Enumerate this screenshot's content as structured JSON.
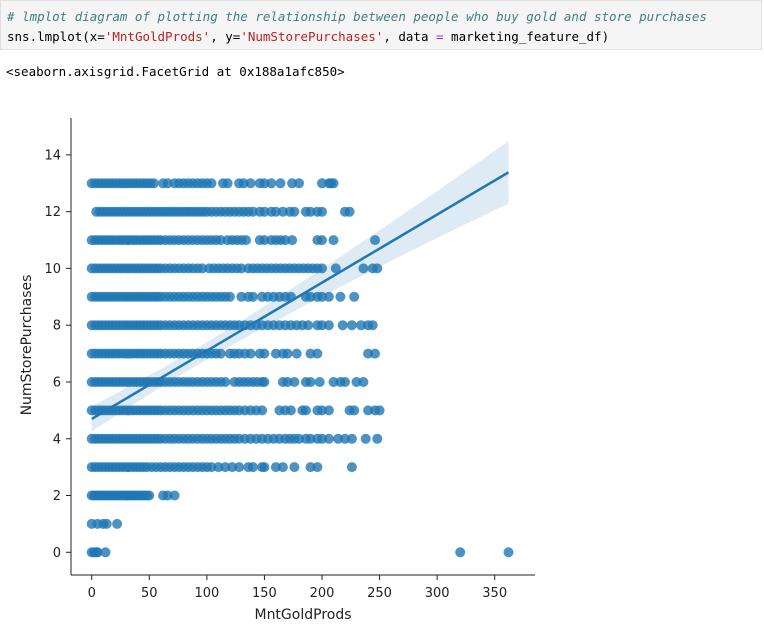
{
  "cell": {
    "comment": "# lmplot diagram of plotting the relationship between people who buy gold and store purchases",
    "code": {
      "fn": "sns.lmplot(x=",
      "x_str": "'MntGoldProds'",
      "sep1": ", y=",
      "y_str": "'NumStorePurchases'",
      "sep2": ", data ",
      "eq": "=",
      "tail": " marketing_feature_df)"
    },
    "output": "<seaborn.axisgrid.FacetGrid at 0x188a1afc850>"
  },
  "chart_data": {
    "type": "scatter",
    "xlabel": "MntGoldProds",
    "ylabel": "NumStorePurchases",
    "xlim": [
      -18,
      385
    ],
    "ylim": [
      -0.8,
      15.3
    ],
    "xticks": [
      0,
      50,
      100,
      150,
      200,
      250,
      300,
      350
    ],
    "yticks": [
      0,
      2,
      4,
      6,
      8,
      10,
      12,
      14
    ],
    "point_color": "#1f77b4",
    "grid": false,
    "regression": {
      "x0": 0,
      "x1": 362,
      "intercept": 4.7,
      "slope": 0.024
    },
    "ci_band": {
      "at_x0": 0.3,
      "at_x1": 1.1
    },
    "rows": [
      {
        "y": 0,
        "x": [
          0,
          2,
          4,
          5,
          12,
          320,
          362
        ]
      },
      {
        "y": 1,
        "x": [
          0,
          5,
          10,
          13,
          22
        ]
      },
      {
        "y": 2,
        "x": [
          0,
          2,
          4,
          6,
          8,
          10,
          12,
          14,
          16,
          18,
          20,
          22,
          24,
          26,
          28,
          30,
          32,
          34,
          36,
          38,
          40,
          42,
          44,
          46,
          48,
          50,
          62,
          66,
          72
        ]
      },
      {
        "y": 3,
        "x": [
          0,
          3,
          6,
          9,
          12,
          15,
          18,
          21,
          24,
          27,
          30,
          33,
          36,
          39,
          42,
          45,
          48,
          52,
          56,
          60,
          64,
          68,
          72,
          76,
          80,
          84,
          88,
          92,
          96,
          100,
          104,
          110,
          116,
          122,
          128,
          136,
          140,
          148,
          150,
          160,
          166,
          176,
          190,
          196,
          226
        ]
      },
      {
        "y": 4,
        "x": [
          0,
          3,
          6,
          9,
          12,
          15,
          18,
          21,
          24,
          27,
          30,
          33,
          36,
          39,
          42,
          45,
          48,
          51,
          54,
          57,
          60,
          64,
          68,
          72,
          76,
          80,
          84,
          88,
          92,
          96,
          100,
          104,
          108,
          112,
          116,
          120,
          124,
          128,
          133,
          138,
          143,
          148,
          153,
          158,
          163,
          168,
          172,
          176,
          180,
          186,
          190,
          196,
          200,
          206,
          214,
          220,
          226,
          238,
          248
        ]
      },
      {
        "y": 5,
        "x": [
          0,
          3,
          6,
          9,
          12,
          15,
          18,
          21,
          24,
          27,
          30,
          33,
          36,
          39,
          42,
          45,
          48,
          51,
          54,
          57,
          60,
          64,
          68,
          72,
          76,
          80,
          84,
          88,
          92,
          96,
          100,
          104,
          108,
          112,
          116,
          120,
          124,
          128,
          133,
          138,
          143,
          148,
          163,
          168,
          173,
          183,
          186,
          196,
          200,
          206,
          224,
          228,
          240,
          246,
          250
        ]
      },
      {
        "y": 6,
        "x": [
          0,
          3,
          6,
          9,
          12,
          15,
          18,
          21,
          24,
          27,
          30,
          33,
          36,
          39,
          42,
          45,
          48,
          51,
          54,
          57,
          60,
          64,
          68,
          72,
          76,
          80,
          84,
          88,
          92,
          96,
          100,
          104,
          108,
          112,
          116,
          124,
          128,
          132,
          136,
          140,
          144,
          148,
          150,
          166,
          170,
          176,
          186,
          190,
          198,
          210,
          216,
          220,
          230,
          236
        ]
      },
      {
        "y": 7,
        "x": [
          0,
          3,
          6,
          9,
          12,
          15,
          18,
          21,
          24,
          27,
          30,
          33,
          36,
          39,
          42,
          45,
          48,
          51,
          54,
          57,
          60,
          64,
          68,
          72,
          76,
          80,
          84,
          88,
          92,
          96,
          100,
          104,
          108,
          112,
          120,
          124,
          128,
          133,
          138,
          146,
          150,
          160,
          166,
          170,
          178,
          190,
          196,
          240,
          246
        ]
      },
      {
        "y": 8,
        "x": [
          0,
          3,
          6,
          9,
          12,
          15,
          18,
          21,
          24,
          27,
          30,
          33,
          36,
          39,
          42,
          45,
          48,
          51,
          54,
          57,
          60,
          64,
          68,
          72,
          76,
          80,
          84,
          88,
          92,
          96,
          100,
          104,
          108,
          112,
          116,
          120,
          124,
          128,
          133,
          138,
          143,
          148,
          153,
          158,
          163,
          168,
          173,
          178,
          183,
          188,
          196,
          200,
          206,
          218,
          226,
          234,
          240,
          244
        ]
      },
      {
        "y": 9,
        "x": [
          0,
          3,
          6,
          9,
          12,
          15,
          18,
          21,
          24,
          27,
          30,
          33,
          36,
          39,
          42,
          45,
          48,
          51,
          54,
          57,
          60,
          64,
          68,
          72,
          76,
          80,
          84,
          88,
          92,
          96,
          100,
          104,
          108,
          112,
          116,
          120,
          130,
          136,
          140,
          148,
          153,
          158,
          163,
          168,
          173,
          186,
          190,
          196,
          200,
          206,
          216,
          228
        ]
      },
      {
        "y": 10,
        "x": [
          0,
          3,
          6,
          9,
          12,
          15,
          18,
          21,
          24,
          27,
          30,
          33,
          36,
          39,
          42,
          45,
          48,
          51,
          54,
          57,
          60,
          64,
          68,
          72,
          76,
          80,
          84,
          88,
          92,
          96,
          102,
          106,
          110,
          114,
          118,
          122,
          126,
          130,
          136,
          140,
          144,
          148,
          152,
          156,
          160,
          164,
          168,
          172,
          176,
          180,
          184,
          188,
          192,
          196,
          200,
          212,
          236,
          244,
          248
        ]
      },
      {
        "y": 11,
        "x": [
          0,
          3,
          6,
          9,
          12,
          15,
          18,
          21,
          24,
          27,
          30,
          33,
          36,
          39,
          42,
          45,
          48,
          51,
          54,
          57,
          60,
          64,
          68,
          72,
          76,
          80,
          84,
          88,
          92,
          96,
          100,
          104,
          108,
          112,
          118,
          122,
          126,
          130,
          134,
          146,
          150,
          156,
          160,
          164,
          168,
          174,
          196,
          200,
          210,
          246
        ]
      },
      {
        "y": 12,
        "x": [
          4,
          7,
          10,
          13,
          16,
          19,
          22,
          25,
          28,
          31,
          34,
          37,
          40,
          43,
          46,
          49,
          52,
          55,
          58,
          61,
          64,
          67,
          70,
          73,
          76,
          79,
          82,
          85,
          88,
          91,
          94,
          97,
          100,
          104,
          108,
          112,
          116,
          120,
          124,
          128,
          132,
          136,
          140,
          146,
          150,
          156,
          160,
          166,
          172,
          176,
          186,
          190,
          196,
          200,
          220,
          224
        ]
      },
      {
        "y": 13,
        "x": [
          0,
          3,
          6,
          9,
          12,
          15,
          18,
          21,
          24,
          27,
          30,
          33,
          36,
          39,
          42,
          45,
          48,
          51,
          54,
          62,
          66,
          72,
          76,
          80,
          84,
          88,
          92,
          96,
          100,
          104,
          114,
          118,
          128,
          132,
          138,
          146,
          150,
          156,
          164,
          174,
          180,
          200,
          206,
          208,
          210
        ]
      }
    ]
  }
}
